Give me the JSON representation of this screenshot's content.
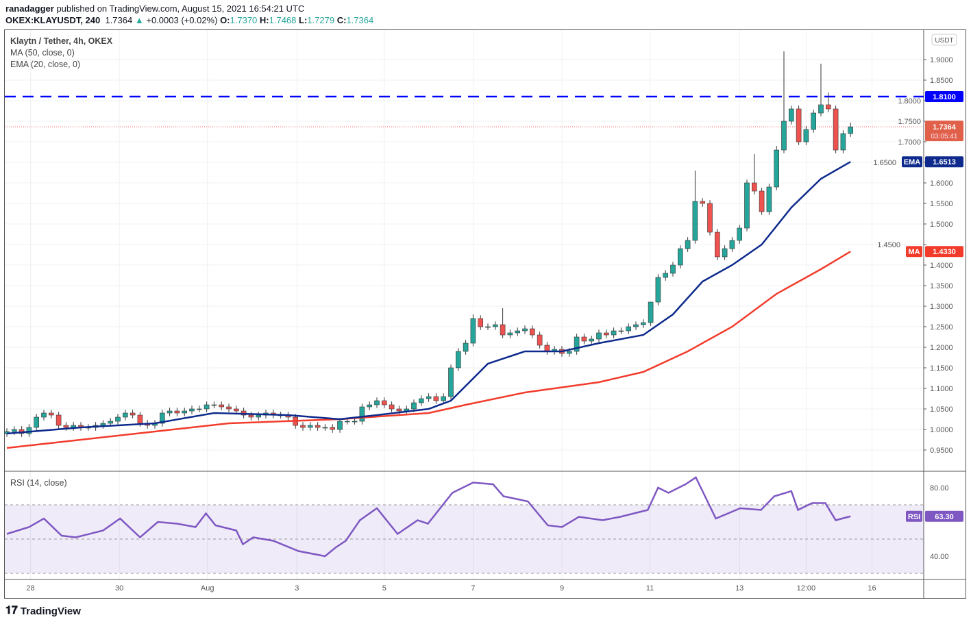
{
  "header": {
    "publisher": "ranadagger",
    "published_text": "published on TradingView.com, August 15, 2021 16:54:21 UTC",
    "symbol": "OKEX:KLAYUSDT, 240",
    "last": "1.7364",
    "change": "+0.0003 (+0.02%)",
    "o_label": "O:",
    "o": "1.7370",
    "h_label": "H:",
    "h": "1.7468",
    "l_label": "L:",
    "l": "1.7279",
    "c_label": "C:",
    "c": "1.7364"
  },
  "legend": {
    "title": "Klaytn / Tether, 4h, OKEX",
    "ma": "MA (50, close, 0)",
    "ema": "EMA (20, close, 0)",
    "rsi": "RSI (14, close)"
  },
  "brand": "TradingView",
  "colors": {
    "up": "#26a69a",
    "down": "#ef5350",
    "ema": "#0d2a8c",
    "ma": "#f23b2b",
    "rsi": "#7e57c2",
    "resistance": "#0000ff"
  },
  "chart_data": {
    "type": "candlestick",
    "currency": "USDT",
    "ylim": [
      0.92,
      1.95
    ],
    "yticks": [
      "0.9500",
      "1.0000",
      "1.0500",
      "1.1000",
      "1.1500",
      "1.2000",
      "1.2500",
      "1.3000",
      "1.3500",
      "1.4000",
      "1.4500",
      "1.5000",
      "1.5500",
      "1.6000",
      "1.6500",
      "1.7000",
      "1.7500",
      "1.8000",
      "1.8500",
      "1.9000"
    ],
    "xticks": [
      {
        "label": "28",
        "bar": 3.2
      },
      {
        "label": "30",
        "bar": 15.2
      },
      {
        "label": "Aug",
        "bar": 27.1
      },
      {
        "label": "3",
        "bar": 39.2
      },
      {
        "label": "5",
        "bar": 51
      },
      {
        "label": "7",
        "bar": 63
      },
      {
        "label": "9",
        "bar": 75
      },
      {
        "label": "11",
        "bar": 86.9
      },
      {
        "label": "13",
        "bar": 99
      },
      {
        "label": "12:00",
        "bar": 108
      },
      {
        "label": "16",
        "bar": 116.9
      }
    ],
    "closes": [
      0.995,
      1.0,
      0.99,
      1.005,
      1.03,
      1.04,
      1.035,
      1.01,
      1.005,
      1.01,
      1.005,
      1.005,
      1.01,
      1.015,
      1.02,
      1.03,
      1.04,
      1.035,
      1.015,
      1.01,
      1.015,
      1.04,
      1.045,
      1.04,
      1.045,
      1.05,
      1.05,
      1.06,
      1.06,
      1.055,
      1.05,
      1.045,
      1.035,
      1.03,
      1.035,
      1.04,
      1.035,
      1.035,
      1.03,
      1.01,
      1.005,
      1.01,
      1.005,
      1.005,
      1.0,
      1.02,
      1.02,
      1.02,
      1.055,
      1.06,
      1.07,
      1.06,
      1.05,
      1.045,
      1.05,
      1.065,
      1.075,
      1.08,
      1.07,
      1.08,
      1.15,
      1.19,
      1.21,
      1.27,
      1.25,
      1.25,
      1.255,
      1.23,
      1.235,
      1.24,
      1.245,
      1.23,
      1.205,
      1.19,
      1.195,
      1.185,
      1.19,
      1.225,
      1.215,
      1.22,
      1.235,
      1.23,
      1.24,
      1.24,
      1.25,
      1.255,
      1.26,
      1.31,
      1.37,
      1.38,
      1.4,
      1.44,
      1.46,
      1.555,
      1.55,
      1.48,
      1.42,
      1.44,
      1.46,
      1.49,
      1.6,
      1.58,
      1.53,
      1.59,
      1.68,
      1.75,
      1.78,
      1.7,
      1.73,
      1.77,
      1.79,
      1.78,
      1.68,
      1.72,
      1.7364
    ],
    "high_overrides": {
      "105": 1.92,
      "110": 1.89,
      "111": 1.82,
      "93": 1.63,
      "101": 1.67,
      "63": 1.28,
      "67": 1.295,
      "87": 1.3,
      "104": 1.69,
      "114": 1.7468
    },
    "ema": {
      "name": "EMA",
      "value": "1.6513",
      "points": [
        [
          0,
          0.99
        ],
        [
          10,
          1.005
        ],
        [
          20,
          1.015
        ],
        [
          28,
          1.04
        ],
        [
          38,
          1.035
        ],
        [
          45,
          1.025
        ],
        [
          50,
          1.035
        ],
        [
          57,
          1.05
        ],
        [
          60,
          1.07
        ],
        [
          65,
          1.16
        ],
        [
          70,
          1.19
        ],
        [
          75,
          1.19
        ],
        [
          80,
          1.21
        ],
        [
          86,
          1.23
        ],
        [
          90,
          1.28
        ],
        [
          94,
          1.36
        ],
        [
          98,
          1.4
        ],
        [
          102,
          1.45
        ],
        [
          106,
          1.54
        ],
        [
          110,
          1.61
        ],
        [
          114,
          1.6513
        ]
      ]
    },
    "ma": {
      "name": "MA",
      "value": "1.4330",
      "points": [
        [
          0,
          0.955
        ],
        [
          10,
          0.975
        ],
        [
          20,
          0.995
        ],
        [
          30,
          1.015
        ],
        [
          45,
          1.025
        ],
        [
          57,
          1.04
        ],
        [
          62,
          1.06
        ],
        [
          70,
          1.09
        ],
        [
          80,
          1.115
        ],
        [
          86,
          1.14
        ],
        [
          92,
          1.19
        ],
        [
          98,
          1.25
        ],
        [
          104,
          1.33
        ],
        [
          110,
          1.39
        ],
        [
          114,
          1.433
        ]
      ]
    },
    "resistance": {
      "value": "1.8100"
    },
    "last_price": {
      "value": "1.7364",
      "countdown": "03:05:41"
    },
    "rsi": {
      "name": "RSI",
      "value": "63.30",
      "yticks": [
        "40.00",
        "80.00"
      ],
      "band": [
        30,
        70
      ],
      "points": [
        [
          0,
          53
        ],
        [
          3,
          57
        ],
        [
          5,
          62
        ],
        [
          7.4,
          52
        ],
        [
          9.3,
          51
        ],
        [
          13,
          55
        ],
        [
          15.3,
          62
        ],
        [
          18,
          51
        ],
        [
          20.4,
          60
        ],
        [
          23,
          59
        ],
        [
          25.5,
          57
        ],
        [
          26.9,
          65
        ],
        [
          28.2,
          58
        ],
        [
          31,
          55
        ],
        [
          31.9,
          47
        ],
        [
          33.3,
          51
        ],
        [
          36,
          49
        ],
        [
          39.4,
          43
        ],
        [
          43,
          40
        ],
        [
          44.4,
          45
        ],
        [
          45.8,
          49
        ],
        [
          47.7,
          61
        ],
        [
          50,
          68
        ],
        [
          52.8,
          53
        ],
        [
          55.5,
          61
        ],
        [
          56.9,
          59
        ],
        [
          60.2,
          77
        ],
        [
          63,
          83
        ],
        [
          65.7,
          82
        ],
        [
          67.1,
          75
        ],
        [
          70.4,
          72
        ],
        [
          73.1,
          58
        ],
        [
          75,
          57
        ],
        [
          77.3,
          63
        ],
        [
          80.5,
          61
        ],
        [
          82.9,
          63
        ],
        [
          86.6,
          67
        ],
        [
          88,
          80
        ],
        [
          89.4,
          77
        ],
        [
          91.7,
          82
        ],
        [
          93.1,
          86
        ],
        [
          95.8,
          62
        ],
        [
          99.1,
          68
        ],
        [
          101.9,
          67
        ],
        [
          103.7,
          75
        ],
        [
          106,
          78
        ],
        [
          106.9,
          67
        ],
        [
          108.8,
          71
        ],
        [
          110.6,
          71
        ],
        [
          112,
          61
        ],
        [
          114,
          63.3
        ]
      ]
    }
  }
}
